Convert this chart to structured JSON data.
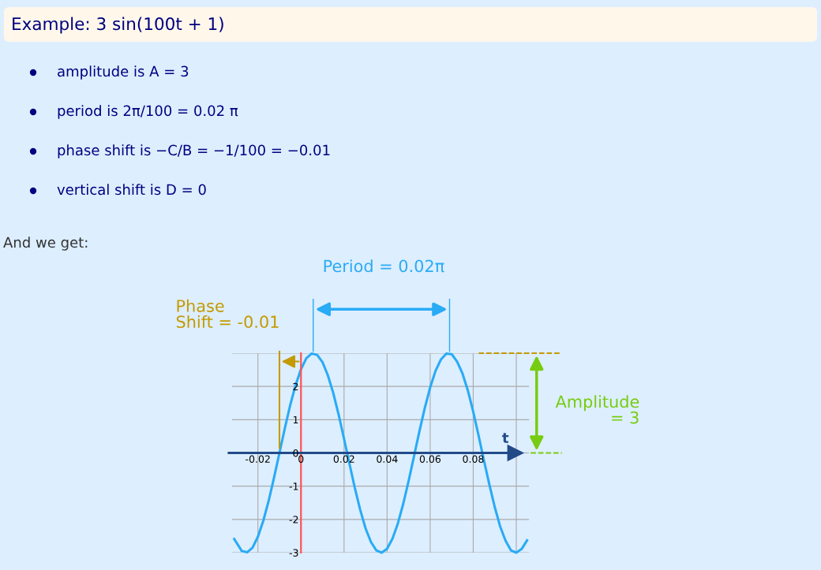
{
  "chart_data": {
    "type": "line",
    "title": "Example: 3 sin(100t + 1)",
    "xlabel": "t",
    "x": [
      -0.031,
      -0.0275,
      -0.025,
      -0.0225,
      -0.02,
      -0.0175,
      -0.015,
      -0.0125,
      -0.01,
      -0.0075,
      -0.005,
      -0.0025,
      0,
      0.0025,
      0.005,
      0.0075,
      0.01,
      0.0125,
      0.015,
      0.0175,
      0.02,
      0.0225,
      0.025,
      0.0275,
      0.03,
      0.0325,
      0.035,
      0.0375,
      0.04,
      0.0425,
      0.045,
      0.0475,
      0.05,
      0.0525,
      0.055,
      0.0575,
      0.06,
      0.0625,
      0.065,
      0.0675,
      0.07,
      0.0725,
      0.075,
      0.0775,
      0.08,
      0.0825,
      0.085,
      0.0875,
      0.09,
      0.0925,
      0.095,
      0.0975,
      0.1,
      0.1025,
      0.105
    ],
    "series": [
      {
        "color": "#29abf5",
        "values": [
          -2.59,
          -2.95,
          -2.99,
          -2.85,
          -2.52,
          -2.04,
          -1.44,
          -0.74,
          0,
          0.74,
          1.44,
          2.04,
          2.52,
          2.85,
          2.99,
          2.95,
          2.73,
          2.33,
          1.8,
          1.15,
          0.42,
          -0.32,
          -1.05,
          -1.71,
          -2.27,
          -2.68,
          -2.93,
          -3.0,
          -2.88,
          -2.58,
          -2.12,
          -1.53,
          -0.84,
          -0.1,
          0.65,
          1.35,
          1.97,
          2.47,
          2.81,
          2.99,
          2.97,
          2.75,
          2.39,
          1.88,
          1.24,
          0.52,
          -0.23,
          -0.95,
          -1.63,
          -2.21,
          -2.64,
          -2.93,
          -3.0,
          -2.89,
          -2.63
        ]
      }
    ],
    "xlim": [
      -0.032,
      0.106
    ],
    "ylim": [
      -3,
      3
    ],
    "xticks": [
      -0.02,
      0,
      0.02,
      0.04,
      0.06,
      0.08,
      {
        "value": 0.1,
        "label": null
      }
    ],
    "yticks": [
      -3,
      -2,
      -1,
      0,
      1,
      2,
      {
        "value": 3,
        "label": null
      }
    ],
    "grid": true,
    "marker": "none",
    "line_style": "solid",
    "ref_lines": [
      {
        "axis": "x",
        "value": -0.01,
        "color": "#c49a00"
      },
      {
        "axis": "y",
        "value": 3,
        "color": "#c49a00",
        "line_style": "dashed"
      }
    ],
    "annotations": [
      "amplitude is A = 3",
      "period is 2π/100 = 0.02 π",
      "phase shift is −C/B = −1/100 = −0.01",
      "vertical shift is D = 0",
      "And we get:",
      "Period = 0.02π",
      "Phase\nShift = -0.01",
      "Amplitude\n= 3"
    ]
  }
}
